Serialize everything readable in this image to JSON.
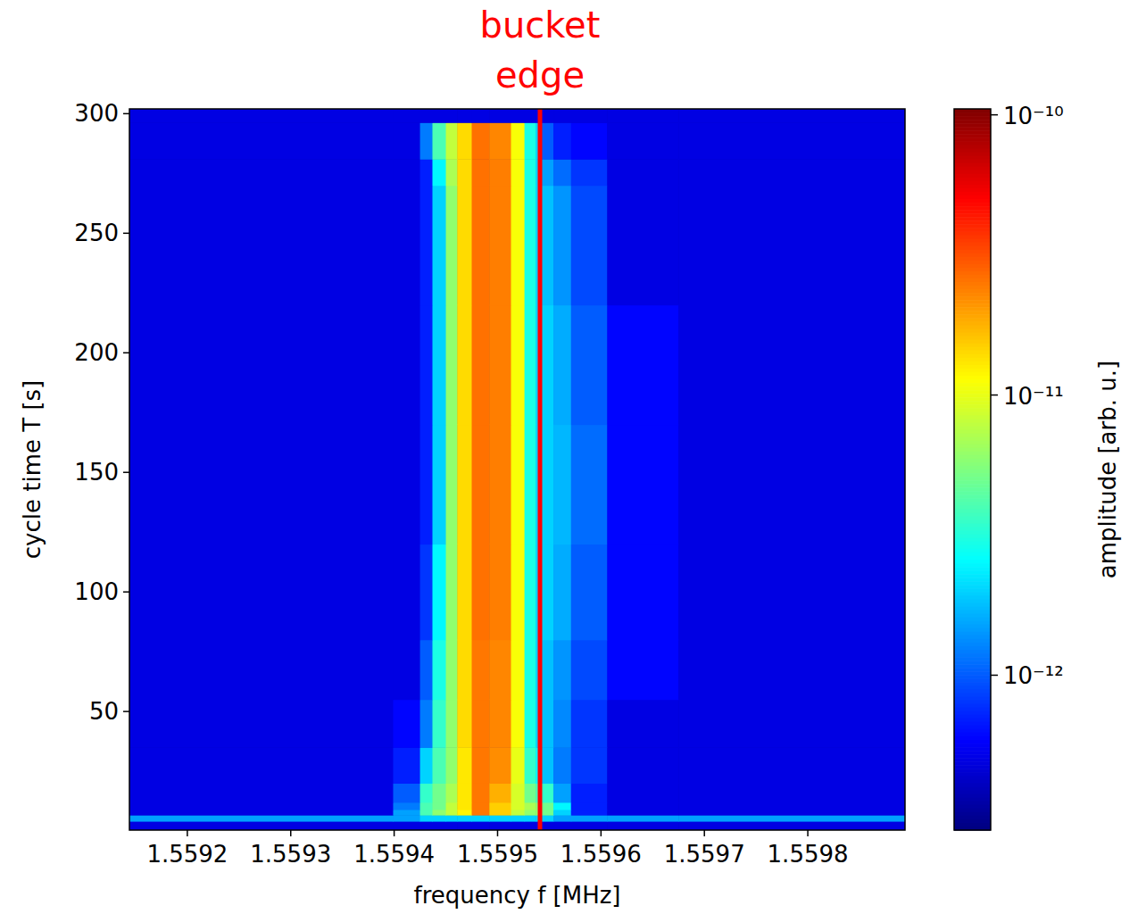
{
  "chart_data": {
    "type": "heatmap",
    "x_label": "frequency f [MHz]",
    "y_label": "cycle time T [s]",
    "xlim": [
      1.559144,
      1.559894
    ],
    "ylim": [
      0.4,
      302
    ],
    "xticks": [
      1.5592,
      1.5593,
      1.5594,
      1.5595,
      1.5596,
      1.5597,
      1.5598
    ],
    "yticks": [
      50,
      100,
      150,
      200,
      250,
      300
    ],
    "x_edges": [
      1.559144,
      1.559399,
      1.559425,
      1.559437,
      1.55945,
      1.559461,
      1.559475,
      1.559492,
      1.559513,
      1.559526,
      1.559537,
      1.559541,
      1.559554,
      1.559571,
      1.559606,
      1.559675,
      1.559894
    ],
    "y_edges": [
      0.4,
      4.1,
      6.7,
      9,
      12,
      20,
      35,
      55,
      80,
      120,
      170,
      220,
      270,
      281,
      296.3,
      302
    ],
    "cells": [
      [
        5e-13,
        5e-13,
        5e-13,
        5e-13,
        5e-13,
        5e-13,
        5e-13,
        5e-13,
        5e-13,
        5e-13,
        5e-13,
        5e-13,
        5e-13,
        5e-13,
        5e-13,
        5e-13
      ],
      [
        1.5e-12,
        1.5e-12,
        2e-12,
        2e-12,
        2e-12,
        2e-12,
        2e-12,
        2e-12,
        2e-12,
        2e-12,
        2e-12,
        2e-12,
        1.5e-12,
        1.5e-12,
        1.5e-12,
        1.5e-12
      ],
      [
        5e-13,
        1.5e-12,
        4e-12,
        6e-12,
        8e-12,
        1.2e-11,
        2.5e-11,
        1.5e-11,
        8e-12,
        6e-12,
        6e-12,
        5e-12,
        2e-12,
        7e-13,
        5e-13,
        5e-13
      ],
      [
        5e-13,
        1.2e-12,
        4e-12,
        5e-12,
        8e-12,
        1.3e-11,
        2.5e-11,
        1.5e-11,
        9e-12,
        7e-12,
        6e-12,
        5e-12,
        2.5e-12,
        7e-13,
        5e-13,
        5e-13
      ],
      [
        5e-13,
        1e-12,
        3.5e-12,
        5e-12,
        7e-12,
        1.3e-11,
        2.5e-11,
        1.8e-11,
        9e-12,
        5e-12,
        4e-12,
        3.5e-12,
        1.5e-12,
        7e-13,
        5e-13,
        5e-13
      ],
      [
        5e-13,
        7e-13,
        2e-12,
        4e-12,
        6e-12,
        1.3e-11,
        2.5e-11,
        2.2e-11,
        1e-11,
        3.5e-12,
        2.5e-12,
        1.8e-12,
        1.2e-12,
        8e-13,
        5e-13,
        5e-13
      ],
      [
        5e-13,
        6e-13,
        1.2e-12,
        3.5e-12,
        6e-12,
        1.4e-11,
        2.5e-11,
        2.3e-11,
        1.1e-11,
        3e-12,
        2e-12,
        1.8e-12,
        1.3e-12,
        8e-13,
        5e-13,
        5e-13
      ],
      [
        5e-13,
        5e-13,
        1e-12,
        3e-12,
        6e-12,
        1.4e-11,
        2.5e-11,
        2.3e-11,
        1.1e-11,
        3e-12,
        2e-12,
        1.8e-12,
        1.4e-12,
        9e-13,
        6e-13,
        5e-13
      ],
      [
        5e-13,
        5e-13,
        8e-13,
        2.5e-12,
        6e-12,
        1.4e-11,
        2.6e-11,
        2.4e-11,
        1.1e-11,
        3e-12,
        2e-12,
        2e-12,
        1.6e-12,
        1e-12,
        6e-13,
        5e-13
      ],
      [
        5e-13,
        5e-13,
        7e-13,
        2e-12,
        6e-12,
        1.4e-11,
        2.6e-11,
        2.4e-11,
        1.1e-11,
        3e-12,
        2e-12,
        2e-12,
        1.7e-12,
        1.1e-12,
        6e-13,
        5e-13
      ],
      [
        5e-13,
        5e-13,
        7e-13,
        2e-12,
        6e-12,
        1.4e-11,
        2.6e-11,
        2.4e-11,
        1.1e-11,
        3e-12,
        2e-12,
        2e-12,
        1.6e-12,
        1e-12,
        6e-13,
        5e-13
      ],
      [
        5e-13,
        5e-13,
        7e-13,
        2e-12,
        6e-12,
        1.4e-11,
        2.6e-11,
        2.4e-11,
        1.1e-11,
        3e-12,
        2e-12,
        1.8e-12,
        1.4e-12,
        9e-13,
        5e-13,
        5e-13
      ],
      [
        5e-13,
        5e-13,
        7e-13,
        2.5e-12,
        7e-12,
        1.4e-11,
        2.6e-11,
        2.4e-11,
        1.1e-11,
        3e-12,
        2e-12,
        1.5e-12,
        1.1e-12,
        8e-13,
        5e-13,
        5e-13
      ],
      [
        5e-13,
        5e-13,
        1.2e-12,
        4e-12,
        8e-12,
        1.4e-11,
        2.6e-11,
        2.3e-11,
        1.1e-11,
        3e-12,
        2e-12,
        1e-12,
        7e-13,
        6e-13,
        5e-13,
        5e-13
      ],
      [
        5e-13,
        5e-13,
        5e-13,
        5e-13,
        5e-13,
        5e-13,
        5e-13,
        5e-13,
        5e-13,
        5e-13,
        5e-13,
        5e-13,
        5e-13,
        5e-13,
        5e-13,
        5e-13
      ]
    ],
    "color_label": "amplitude [arb. u.]",
    "color_range": [
      2.8e-13,
      1.05e-10
    ],
    "color_ticks": [
      {
        "value": 1e-10,
        "label": "10⁻¹⁰"
      },
      {
        "value": 1e-11,
        "label": "10⁻¹¹"
      },
      {
        "value": 1e-12,
        "label": "10⁻¹²"
      }
    ],
    "annotation": {
      "text": "bucket edge",
      "x": 1.559541,
      "color": "#ff0000"
    }
  }
}
